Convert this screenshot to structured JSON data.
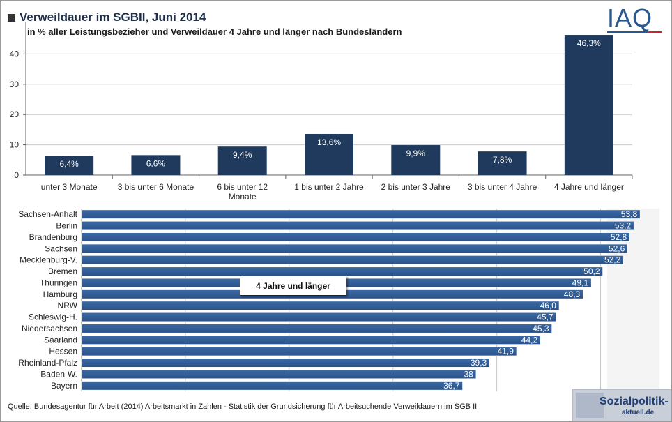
{
  "header": {
    "title": "Verweildauer im SGBII, Juni 2014",
    "subtitle": "in % aller Leistungsbezieher und Verweildauer 4 Jahre und länger nach Bundesländern"
  },
  "logo": {
    "text": "IAQ"
  },
  "callout": {
    "label": "4 Jahre und länger"
  },
  "footer": {
    "source": "Quelle: Bundesagentur für Arbeit (2014) Arbeitsmarkt in Zahlen - Statistik der Grundsicherung für Arbeitsuchende Verweildauern im SGB II"
  },
  "badge": {
    "text": "Sozialpolitik-",
    "sub": "aktuell.de"
  },
  "colors": {
    "bar_top": "#1f3a5c",
    "bar_bottom": "#2f5d96",
    "grid": "#c8c8c8"
  },
  "chart_data": [
    {
      "type": "bar",
      "categories": [
        "unter 3 Monate",
        "3 bis unter 6 Monate",
        "6 bis unter 12 Monate",
        "1 bis unter 2 Jahre",
        "2 bis unter 3 Jahre",
        "3 bis unter 4 Jahre",
        "4 Jahre und länger"
      ],
      "values": [
        6.4,
        6.6,
        9.4,
        13.6,
        9.9,
        7.8,
        46.3
      ],
      "labels": [
        "6,4%",
        "6,6%",
        "9,4%",
        "13,6%",
        "9,9%",
        "7,8%",
        "46,3%"
      ],
      "yticks": [
        "0",
        "10",
        "20",
        "30",
        "40"
      ],
      "ylim": [
        0,
        50
      ],
      "grid": true
    },
    {
      "type": "bar",
      "orientation": "horizontal",
      "categories": [
        "Sachsen-Anhalt",
        "Berlin",
        "Brandenburg",
        "Sachsen",
        "Mecklenburg-V.",
        "Bremen",
        "Thüringen",
        "Hamburg",
        "NRW",
        "Schleswig-H.",
        "Niedersachsen",
        "Saarland",
        "Hessen",
        "Rheinland-Pfalz",
        "Baden-W.",
        "Bayern"
      ],
      "values": [
        53.8,
        53.2,
        52.8,
        52.6,
        52.2,
        50.2,
        49.1,
        48.3,
        46.0,
        45.7,
        45.3,
        44.2,
        41.9,
        39.3,
        38,
        36.7
      ],
      "labels": [
        "53,8",
        "53,2",
        "52,8",
        "52,6",
        "52,2",
        "50,2",
        "49,1",
        "48,3",
        "46,0",
        "45,7",
        "45,3",
        "44,2",
        "41,9",
        "39,3",
        "38",
        "36,7"
      ],
      "xlim": [
        0,
        55
      ],
      "grid": true
    }
  ]
}
